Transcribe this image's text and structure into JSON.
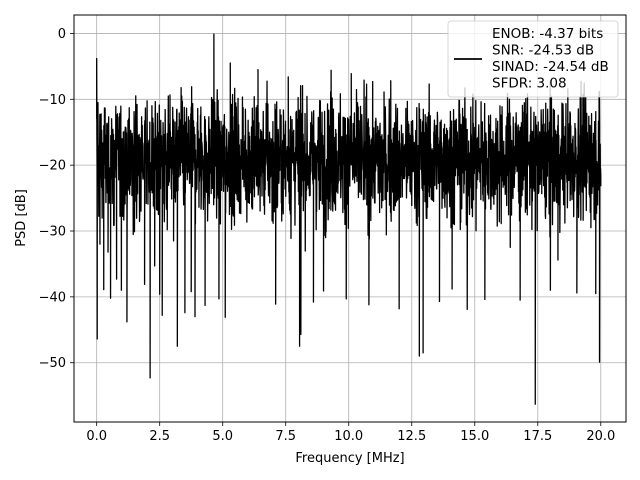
{
  "chart_data": {
    "type": "line",
    "xlabel": "Frequency [MHz]",
    "ylabel": "PSD [dB]",
    "xlim": [
      -0.9,
      21.0
    ],
    "ylim": [
      -59.0,
      2.8
    ],
    "xticks": [
      0.0,
      2.5,
      5.0,
      7.5,
      10.0,
      12.5,
      15.0,
      17.5,
      20.0
    ],
    "xtick_labels": [
      "0.0",
      "2.5",
      "5.0",
      "7.5",
      "10.0",
      "12.5",
      "15.0",
      "17.5",
      "20.0"
    ],
    "yticks": [
      0,
      -10,
      -20,
      -30,
      -40,
      -50
    ],
    "ytick_labels": [
      "0",
      "−10",
      "−20",
      "−30",
      "−40",
      "−50"
    ],
    "grid": true,
    "legend_position": "top-right",
    "series": [
      {
        "name": "ENOB: -4.37 bits\nSNR: -24.53 dB\nSINAD: -24.54 dB\nSFDR: 3.08",
        "color": "#000000",
        "description": "noise-like power spectral density trace spanning 0 to 20 MHz",
        "band_upper_typical": -11,
        "band_lower_typical": -30,
        "mean_level": -19,
        "points": [
          [
            0.0,
            -3.8
          ],
          [
            0.02,
            -46.4
          ],
          [
            0.05,
            -10.5
          ],
          [
            0.13,
            -32.0
          ],
          [
            0.28,
            -38.9
          ],
          [
            0.45,
            -33.2
          ],
          [
            0.55,
            -40.2
          ],
          [
            0.79,
            -37.3
          ],
          [
            0.98,
            -39.0
          ],
          [
            1.2,
            -43.8
          ],
          [
            1.5,
            -30.1
          ],
          [
            1.6,
            -10.8
          ],
          [
            1.9,
            -38.1
          ],
          [
            2.12,
            -52.3
          ],
          [
            2.3,
            -35.3
          ],
          [
            2.5,
            -39.6
          ],
          [
            2.6,
            -42.8
          ],
          [
            2.8,
            -29.8
          ],
          [
            3.05,
            -31.5
          ],
          [
            3.2,
            -47.5
          ],
          [
            3.5,
            -42.4
          ],
          [
            3.75,
            -39.2
          ],
          [
            3.9,
            -43.0
          ],
          [
            4.3,
            -41.3
          ],
          [
            4.65,
            -0.1
          ],
          [
            4.85,
            -40.3
          ],
          [
            5.1,
            -43.1
          ],
          [
            5.3,
            -4.5
          ],
          [
            5.9,
            -11.5
          ],
          [
            6.4,
            -5.5
          ],
          [
            7.1,
            -41.1
          ],
          [
            7.6,
            -6.6
          ],
          [
            8.1,
            -45.7
          ],
          [
            8.05,
            -47.5
          ],
          [
            8.6,
            -40.8
          ],
          [
            9.0,
            -39.1
          ],
          [
            9.3,
            -5.6
          ],
          [
            9.9,
            -40.3
          ],
          [
            10.1,
            -6.1
          ],
          [
            10.8,
            -41.2
          ],
          [
            11.4,
            -8.9
          ],
          [
            12.0,
            -41.8
          ],
          [
            12.8,
            -49.0
          ],
          [
            12.95,
            -48.5
          ],
          [
            13.6,
            -40.7
          ],
          [
            14.1,
            -38.8
          ],
          [
            14.7,
            -41.9
          ],
          [
            15.4,
            -40.4
          ],
          [
            16.0,
            -11.0
          ],
          [
            16.8,
            -40.5
          ],
          [
            17.4,
            -56.3
          ],
          [
            18.0,
            -39.0
          ],
          [
            18.3,
            -34.4
          ],
          [
            19.05,
            -39.4
          ],
          [
            19.8,
            -39.5
          ],
          [
            19.95,
            -49.9
          ],
          [
            20.0,
            -23.2
          ]
        ]
      }
    ]
  }
}
